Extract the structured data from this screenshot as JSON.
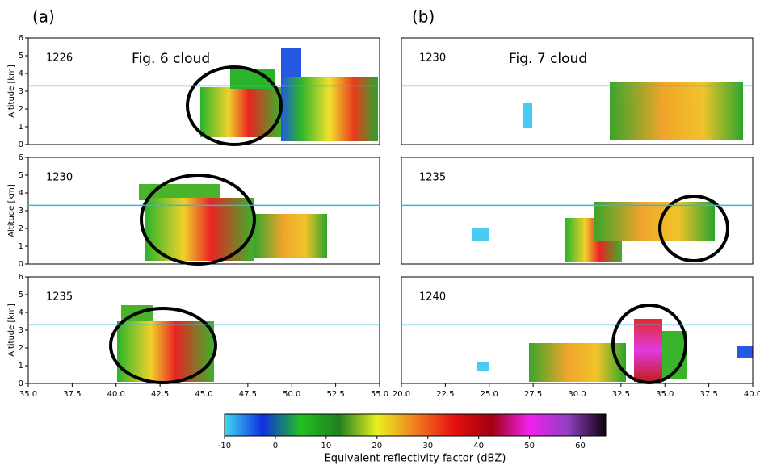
{
  "panel_labels": [
    "(a)",
    "(b)"
  ],
  "chart_data": [
    {
      "type": "heatmap",
      "label": "1226",
      "annotation": "Fig. 6 cloud",
      "ylabel": "Altitude [km]",
      "xlim": [
        35,
        55
      ],
      "ylim": [
        0,
        6
      ],
      "yticks": [
        0,
        1,
        2,
        3,
        4,
        5,
        6
      ],
      "hline": 3.3,
      "hline_color": "#3cb4dc"
    },
    {
      "type": "heatmap",
      "label": "1230",
      "annotation": "Fig. 7 cloud",
      "xlim": [
        20,
        40
      ],
      "ylim": [
        0,
        6
      ],
      "hline": 3.3,
      "hline_color": "#3cb4dc"
    },
    {
      "type": "heatmap",
      "label": "1230",
      "ylabel": "Altitude [km]",
      "xlim": [
        35,
        55
      ],
      "ylim": [
        0,
        6
      ],
      "yticks": [
        0,
        1,
        2,
        3,
        4,
        5,
        6
      ],
      "hline": 3.3,
      "hline_color": "#3cb4dc"
    },
    {
      "type": "heatmap",
      "label": "1235",
      "xlim": [
        20,
        40
      ],
      "ylim": [
        0,
        6
      ],
      "hline": 3.3,
      "hline_color": "#3cb4dc"
    },
    {
      "type": "heatmap",
      "label": "1235",
      "ylabel": "Altitude [km]",
      "xlim": [
        35,
        55
      ],
      "ylim": [
        0,
        6
      ],
      "yticks": [
        0,
        1,
        2,
        3,
        4,
        5,
        6
      ],
      "hline": 3.3,
      "hline_color": "#3cb4dc",
      "xticks": [
        {
          "value": 35,
          "label": "35.0"
        },
        {
          "value": 37.5,
          "label": "37.5"
        },
        {
          "value": 40,
          "label": "40.0"
        },
        {
          "value": 42.5,
          "label": "42.5"
        },
        {
          "value": 45,
          "label": "45.0"
        },
        {
          "value": 47.5,
          "label": "47.5"
        },
        {
          "value": 50,
          "label": "50.0"
        },
        {
          "value": 52.5,
          "label": "52.5"
        },
        {
          "value": 55,
          "label": "55.0"
        }
      ]
    },
    {
      "type": "heatmap",
      "label": "1240",
      "xlim": [
        20,
        40
      ],
      "ylim": [
        0,
        6
      ],
      "hline": 3.3,
      "hline_color": "#3cb4dc",
      "xticks": [
        {
          "value": 20,
          "label": "20.0"
        },
        {
          "value": 22.5,
          "label": "22.5"
        },
        {
          "value": 25,
          "label": "25.0"
        },
        {
          "value": 27.5,
          "label": "27.5"
        },
        {
          "value": 30,
          "label": "30.0"
        },
        {
          "value": 32.5,
          "label": "32.5"
        },
        {
          "value": 35,
          "label": "35.0"
        },
        {
          "value": 37.5,
          "label": "37.5"
        },
        {
          "value": 40,
          "label": "40.0"
        }
      ]
    },
    {
      "type": "colorbar",
      "label": "Equivalent reflectivity factor (dBZ)",
      "lim": [
        -10,
        65
      ],
      "ticks": [
        -10,
        0,
        10,
        20,
        30,
        40,
        50,
        60
      ],
      "colors": [
        "#40d8f0",
        "#1030e0",
        "#20c020",
        "#208020",
        "#e8f020",
        "#f08020",
        "#e81010",
        "#a00010",
        "#f020f0",
        "#9040c0",
        "#100010"
      ]
    }
  ]
}
